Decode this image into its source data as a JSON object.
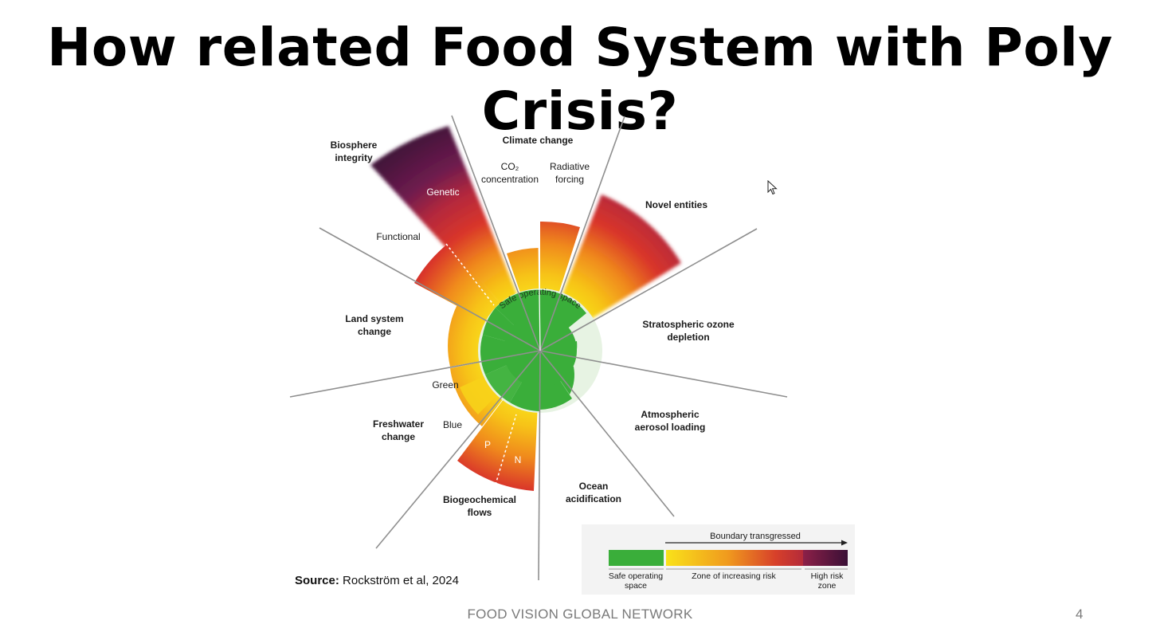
{
  "slide": {
    "title": "How related Food System with Poly Crisis?",
    "footer": "FOOD VISION GLOBAL NETWORK",
    "page_number": "4",
    "source_label": "Source:",
    "source_text": "Rockström et al, 2024"
  },
  "diagram": {
    "center_label": "Safe operating space",
    "boundaries": {
      "climate_change": "Climate change",
      "co2_line1": "CO₂",
      "co2_line2": "concentration",
      "radiative_line1": "Radiative",
      "radiative_line2": "forcing",
      "novel_entities": "Novel entities",
      "ozone_line1": "Stratospheric ozone",
      "ozone_line2": "depletion",
      "aerosol_line1": "Atmospheric",
      "aerosol_line2": "aerosol loading",
      "ocean_line1": "Ocean",
      "ocean_line2": "acidification",
      "biogeo_line1": "Biogeochemical",
      "biogeo_line2": "flows",
      "p": "P",
      "n": "N",
      "freshwater_line1": "Freshwater",
      "freshwater_line2": "change",
      "blue": "Blue",
      "green": "Green",
      "land_line1": "Land system",
      "land_line2": "change",
      "functional": "Functional",
      "biosphere_line1": "Biosphere",
      "biosphere_line2": "integrity",
      "genetic": "Genetic"
    },
    "legend": {
      "header": "Boundary transgressed",
      "safe_line1": "Safe operating",
      "safe_line2": "space",
      "increasing": "Zone of increasing risk",
      "high_line1": "High risk",
      "high_line2": "zone"
    },
    "colors": {
      "safe": "#3aae3a",
      "yellow": "#f7e11a",
      "orange": "#f08a1c",
      "red": "#d9352a",
      "purple": "#5e1a4a",
      "dark": "#351032"
    }
  }
}
